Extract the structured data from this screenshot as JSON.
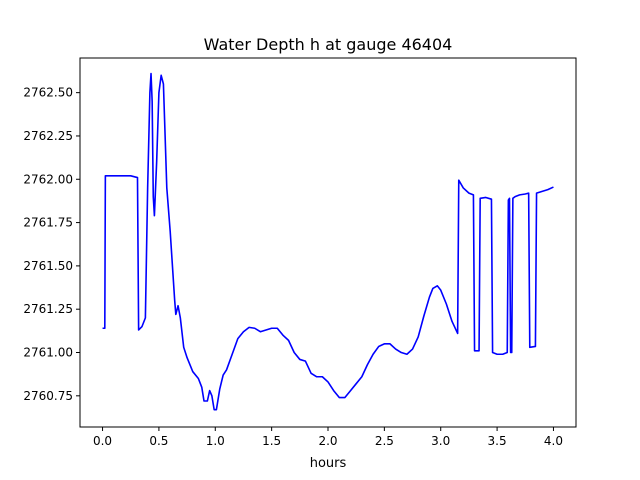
{
  "chart_data": {
    "type": "line",
    "title": "Water Depth h at gauge 46404",
    "xlabel": "hours",
    "ylabel": "",
    "xlim": [
      -0.2,
      4.2
    ],
    "ylim": [
      2760.57,
      2762.7
    ],
    "x_ticks": [
      0.0,
      0.5,
      1.0,
      1.5,
      2.0,
      2.5,
      3.0,
      3.5,
      4.0
    ],
    "x_tick_labels": [
      "0.0",
      "0.5",
      "1.0",
      "1.5",
      "2.0",
      "2.5",
      "3.0",
      "3.5",
      "4.0"
    ],
    "y_ticks": [
      2760.75,
      2761.0,
      2761.25,
      2761.5,
      2761.75,
      2762.0,
      2762.25,
      2762.5
    ],
    "y_tick_labels": [
      "2760.75",
      "2761.00",
      "2761.25",
      "2761.50",
      "2761.75",
      "2762.00",
      "2762.25",
      "2762.50"
    ],
    "grid": false,
    "series": [
      {
        "color": "#0000ff",
        "points": [
          [
            0.0,
            2761.14
          ],
          [
            0.02,
            2761.14
          ],
          [
            0.025,
            2762.02
          ],
          [
            0.15,
            2762.02
          ],
          [
            0.25,
            2762.02
          ],
          [
            0.31,
            2762.01
          ],
          [
            0.32,
            2761.13
          ],
          [
            0.35,
            2761.15
          ],
          [
            0.38,
            2761.2
          ],
          [
            0.4,
            2761.95
          ],
          [
            0.42,
            2762.5
          ],
          [
            0.43,
            2762.61
          ],
          [
            0.44,
            2762.45
          ],
          [
            0.45,
            2761.9
          ],
          [
            0.46,
            2761.79
          ],
          [
            0.48,
            2762.1
          ],
          [
            0.5,
            2762.5
          ],
          [
            0.52,
            2762.6
          ],
          [
            0.54,
            2762.55
          ],
          [
            0.57,
            2761.95
          ],
          [
            0.6,
            2761.7
          ],
          [
            0.64,
            2761.3
          ],
          [
            0.65,
            2761.22
          ],
          [
            0.67,
            2761.27
          ],
          [
            0.69,
            2761.2
          ],
          [
            0.72,
            2761.03
          ],
          [
            0.75,
            2760.97
          ],
          [
            0.8,
            2760.89
          ],
          [
            0.85,
            2760.85
          ],
          [
            0.88,
            2760.8
          ],
          [
            0.9,
            2760.72
          ],
          [
            0.93,
            2760.72
          ],
          [
            0.95,
            2760.78
          ],
          [
            0.97,
            2760.75
          ],
          [
            0.99,
            2760.67
          ],
          [
            1.01,
            2760.67
          ],
          [
            1.04,
            2760.79
          ],
          [
            1.07,
            2760.87
          ],
          [
            1.1,
            2760.9
          ],
          [
            1.15,
            2760.99
          ],
          [
            1.2,
            2761.08
          ],
          [
            1.25,
            2761.12
          ],
          [
            1.3,
            2761.145
          ],
          [
            1.35,
            2761.14
          ],
          [
            1.4,
            2761.12
          ],
          [
            1.45,
            2761.13
          ],
          [
            1.5,
            2761.14
          ],
          [
            1.55,
            2761.14
          ],
          [
            1.6,
            2761.1
          ],
          [
            1.65,
            2761.07
          ],
          [
            1.7,
            2761.0
          ],
          [
            1.75,
            2760.96
          ],
          [
            1.8,
            2760.95
          ],
          [
            1.85,
            2760.88
          ],
          [
            1.9,
            2760.86
          ],
          [
            1.95,
            2760.86
          ],
          [
            2.0,
            2760.83
          ],
          [
            2.05,
            2760.78
          ],
          [
            2.1,
            2760.74
          ],
          [
            2.15,
            2760.74
          ],
          [
            2.2,
            2760.78
          ],
          [
            2.25,
            2760.82
          ],
          [
            2.3,
            2760.86
          ],
          [
            2.35,
            2760.93
          ],
          [
            2.4,
            2760.99
          ],
          [
            2.45,
            2761.035
          ],
          [
            2.5,
            2761.05
          ],
          [
            2.55,
            2761.05
          ],
          [
            2.6,
            2761.02
          ],
          [
            2.65,
            2761.0
          ],
          [
            2.7,
            2760.99
          ],
          [
            2.75,
            2761.02
          ],
          [
            2.8,
            2761.09
          ],
          [
            2.85,
            2761.21
          ],
          [
            2.9,
            2761.32
          ],
          [
            2.93,
            2761.37
          ],
          [
            2.97,
            2761.385
          ],
          [
            3.0,
            2761.36
          ],
          [
            3.05,
            2761.28
          ],
          [
            3.1,
            2761.18
          ],
          [
            3.15,
            2761.11
          ],
          [
            3.16,
            2761.995
          ],
          [
            3.2,
            2761.95
          ],
          [
            3.25,
            2761.92
          ],
          [
            3.29,
            2761.91
          ],
          [
            3.3,
            2761.01
          ],
          [
            3.34,
            2761.01
          ],
          [
            3.35,
            2761.89
          ],
          [
            3.4,
            2761.895
          ],
          [
            3.45,
            2761.885
          ],
          [
            3.46,
            2761.0
          ],
          [
            3.5,
            2760.99
          ],
          [
            3.55,
            2760.99
          ],
          [
            3.59,
            2761.0
          ],
          [
            3.6,
            2761.88
          ],
          [
            3.61,
            2761.89
          ],
          [
            3.62,
            2761.0
          ],
          [
            3.63,
            2761.0
          ],
          [
            3.64,
            2761.89
          ],
          [
            3.66,
            2761.9
          ],
          [
            3.7,
            2761.91
          ],
          [
            3.75,
            2761.915
          ],
          [
            3.78,
            2761.92
          ],
          [
            3.79,
            2761.03
          ],
          [
            3.84,
            2761.035
          ],
          [
            3.85,
            2761.92
          ],
          [
            3.9,
            2761.93
          ],
          [
            3.95,
            2761.94
          ],
          [
            4.0,
            2761.955
          ]
        ]
      }
    ]
  }
}
